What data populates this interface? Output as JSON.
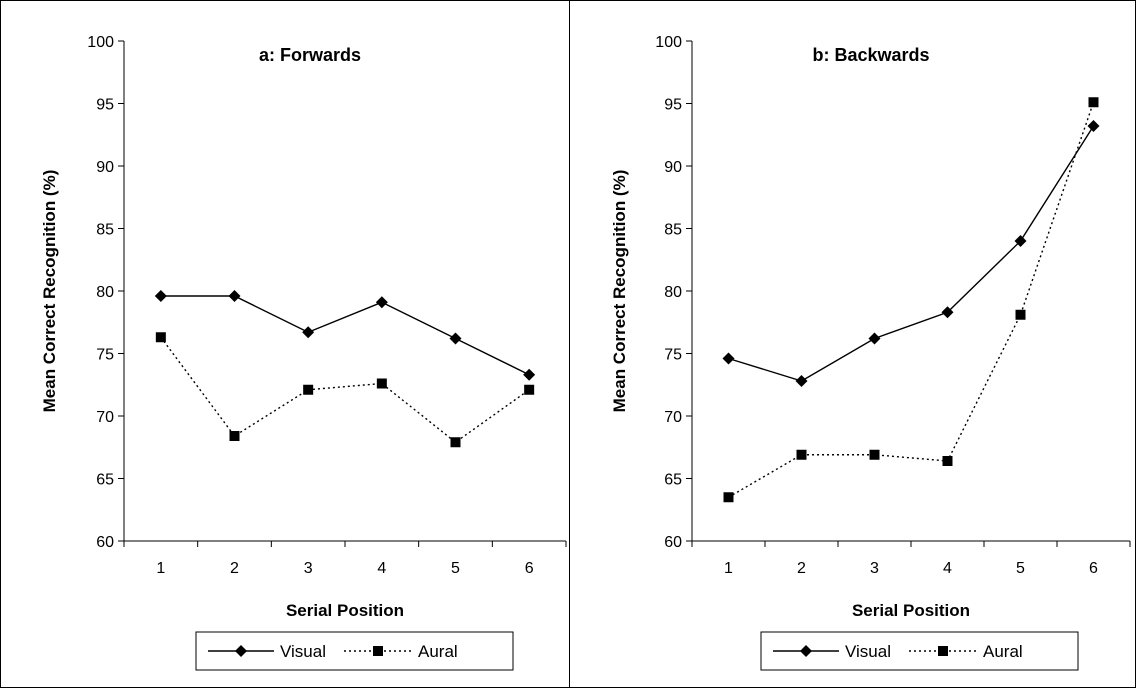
{
  "chart_data": [
    {
      "type": "line",
      "title": "a: Forwards",
      "xlabel": "Serial Position",
      "ylabel": "Mean Correct Recognition (%)",
      "categories": [
        "1",
        "2",
        "3",
        "4",
        "5",
        "6"
      ],
      "ylim": [
        60,
        100
      ],
      "yticks": [
        "60",
        "65",
        "70",
        "75",
        "80",
        "85",
        "90",
        "95",
        "100"
      ],
      "grid": false,
      "legend": "bottom",
      "series": [
        {
          "name": "Visual",
          "values": [
            79.6,
            79.6,
            76.7,
            79.1,
            76.2,
            73.3
          ],
          "marker": "diamond",
          "line": "solid"
        },
        {
          "name": "Aural",
          "values": [
            76.3,
            68.4,
            72.1,
            72.6,
            67.9,
            72.1
          ],
          "marker": "square",
          "line": "dotted"
        }
      ]
    },
    {
      "type": "line",
      "title": "b: Backwards",
      "xlabel": "Serial Position",
      "ylabel": "Mean Correct Recognition (%)",
      "categories": [
        "1",
        "2",
        "3",
        "4",
        "5",
        "6"
      ],
      "ylim": [
        60,
        100
      ],
      "yticks": [
        "60",
        "65",
        "70",
        "75",
        "80",
        "85",
        "90",
        "95",
        "100"
      ],
      "grid": false,
      "legend": "bottom",
      "series": [
        {
          "name": "Visual",
          "values": [
            74.6,
            72.8,
            76.2,
            78.3,
            84.0,
            93.2
          ],
          "marker": "diamond",
          "line": "solid"
        },
        {
          "name": "Aural",
          "values": [
            63.5,
            66.9,
            66.9,
            66.4,
            78.1,
            95.1
          ],
          "marker": "square",
          "line": "dotted"
        }
      ]
    }
  ]
}
